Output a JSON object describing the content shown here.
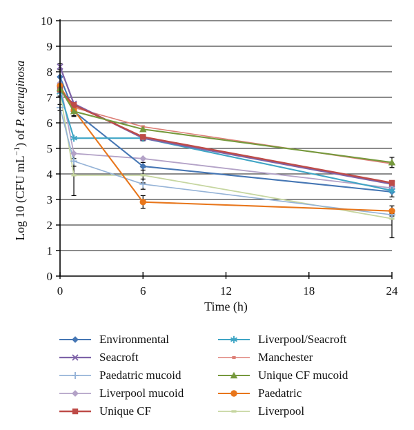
{
  "figure": {
    "background": "#ffffff",
    "ylabel_parts": [
      {
        "t": "Log 10 (CFU mL"
      },
      {
        "t": "−1",
        "sup": true
      },
      {
        "t": ") of "
      },
      {
        "t": "P. aeruginosa",
        "italic": true
      }
    ]
  },
  "chart_data": {
    "type": "line",
    "title": "",
    "xlabel": "Time (h)",
    "ylabel": "Log 10 (CFU mL−1) of P. aeruginosa",
    "x": [
      0,
      1,
      6,
      24
    ],
    "xlim": [
      0,
      24
    ],
    "ylim": [
      0,
      10
    ],
    "xticks": [
      0,
      6,
      12,
      18,
      24
    ],
    "yticks": [
      0,
      1,
      2,
      3,
      4,
      5,
      6,
      7,
      8,
      9,
      10
    ],
    "grid": "horizontal",
    "grid_color": "#464646",
    "axis_color": "#000000",
    "error_bar_color": "#000000",
    "legend_position": "bottom",
    "legend_columns": [
      [
        0,
        1,
        2,
        3,
        4
      ],
      [
        5,
        6,
        7,
        8,
        9
      ]
    ],
    "draw_order": [
      9,
      2,
      3,
      6,
      0,
      5,
      8,
      1,
      4,
      7
    ],
    "series": [
      {
        "name": "Environmental",
        "color": "#4576B4",
        "marker": "diamond",
        "line_width": 2.1,
        "values": [
          7.8,
          6.45,
          4.3,
          3.3
        ],
        "err": [
          null,
          null,
          [
            0.15,
            0.15
          ],
          null
        ]
      },
      {
        "name": "Seacroft",
        "color": "#7E63A8",
        "marker": "x",
        "line_width": 2.3,
        "values": [
          8.2,
          6.75,
          5.4,
          3.6
        ],
        "err": [
          [
            0.12,
            0.12
          ],
          null,
          null,
          null
        ]
      },
      {
        "name": "Paedatric mucoid",
        "color": "#95B3D7",
        "marker": "plus",
        "line_width": 1.7,
        "values": [
          6.6,
          4.5,
          3.6,
          2.4
        ],
        "err": [
          [
            0.12,
            0.12
          ],
          [
            0,
            0.2
          ],
          [
            0.2,
            0.2
          ],
          [
            0.15,
            0.15
          ]
        ]
      },
      {
        "name": "Liverpool mucoid",
        "color": "#B3A2C7",
        "marker": "diamond",
        "line_width": 1.8,
        "values": [
          7.55,
          4.8,
          4.6,
          3.45
        ],
        "err": [
          null,
          [
            0,
            0.2
          ],
          null,
          [
            0.25,
            0.35
          ]
        ]
      },
      {
        "name": "Unique CF",
        "color": "#BE4B48",
        "marker": "square",
        "line_width": 2.4,
        "values": [
          7.3,
          6.7,
          5.45,
          3.65
        ],
        "err": [
          null,
          null,
          [
            0,
            0.15
          ],
          null
        ]
      },
      {
        "name": "Liverpool/Seacroft",
        "color": "#3FA5C5",
        "marker": "asterisk",
        "line_width": 2.1,
        "values": [
          7.2,
          5.4,
          5.4,
          3.35
        ],
        "err": [
          null,
          null,
          null,
          null
        ]
      },
      {
        "name": "Manchester",
        "color": "#DD7E76",
        "marker": "dot",
        "line_width": 1.6,
        "values": [
          7.35,
          6.6,
          5.85,
          4.4
        ],
        "err": [
          null,
          null,
          null,
          null
        ]
      },
      {
        "name": "Unique CF mucoid",
        "color": "#76993D",
        "marker": "triangle",
        "line_width": 2.1,
        "values": [
          7.35,
          6.45,
          5.75,
          4.45
        ],
        "err": [
          [
            0,
            0.3
          ],
          [
            0.2,
            0.2
          ],
          null,
          [
            0.2,
            0.2
          ]
        ]
      },
      {
        "name": "Paedatric",
        "color": "#E8761B",
        "marker": "circle",
        "line_width": 2.1,
        "values": [
          7.45,
          6.5,
          2.9,
          2.55
        ],
        "err": [
          null,
          [
            0,
            0.22
          ],
          [
            0.25,
            0.25
          ],
          [
            0.2,
            0.2
          ]
        ]
      },
      {
        "name": "Liverpool",
        "color": "#C6D6A0",
        "marker": "dash",
        "line_width": 1.8,
        "values": [
          7.2,
          3.95,
          3.95,
          2.25
        ],
        "err": [
          null,
          [
            0.35,
            0.8
          ],
          [
            0.3,
            0.3
          ],
          [
            0.2,
            0.75
          ]
        ]
      }
    ]
  }
}
